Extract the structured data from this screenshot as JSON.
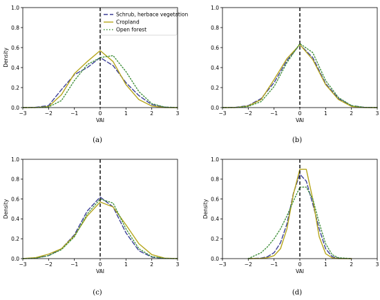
{
  "figure": {
    "legend": [
      {
        "label": "Schrub, herbace vegetation",
        "color": "#3b3f96",
        "style": "dashed"
      },
      {
        "label": "Cropland",
        "color": "#b5a51a",
        "style": "solid"
      },
      {
        "label": "Open forest",
        "color": "#3f8f3a",
        "style": "dotted"
      }
    ]
  },
  "chart_data": [
    {
      "type": "line",
      "panel_label": "(a)",
      "xlabel": "VAI",
      "ylabel": "Density",
      "xlim": [
        -3,
        3
      ],
      "ylim": [
        0,
        1.0
      ],
      "xticks": [
        "-3",
        "-2",
        "-1",
        "0",
        "1",
        "2",
        "3"
      ],
      "yticks": [
        "0.0",
        "0.2",
        "0.4",
        "0.6",
        "0.8",
        "1.0"
      ],
      "vline_x": 0,
      "legend_position": "top-right",
      "x": [
        -3.0,
        -2.5,
        -2.0,
        -1.5,
        -1.0,
        -0.5,
        0.0,
        0.5,
        1.0,
        1.5,
        2.0,
        2.5,
        3.0
      ],
      "series": [
        {
          "name": "Schrub, herbace vegetation",
          "values": [
            0.0,
            0.003,
            0.02,
            0.18,
            0.33,
            0.4,
            0.5,
            0.42,
            0.25,
            0.12,
            0.03,
            0.005,
            0.0
          ]
        },
        {
          "name": "Cropland",
          "values": [
            0.0,
            0.001,
            0.01,
            0.13,
            0.34,
            0.46,
            0.57,
            0.46,
            0.23,
            0.08,
            0.015,
            0.001,
            0.0
          ]
        },
        {
          "name": "Open forest",
          "values": [
            0.0,
            0.001,
            0.006,
            0.07,
            0.27,
            0.43,
            0.5,
            0.52,
            0.36,
            0.16,
            0.04,
            0.005,
            0.0
          ]
        }
      ]
    },
    {
      "type": "line",
      "panel_label": "(b)",
      "xlabel": "VAI",
      "ylabel": "",
      "xlim": [
        -3,
        3
      ],
      "ylim": [
        0,
        1.0
      ],
      "xticks": [
        "-3",
        "-2",
        "-1",
        "0",
        "1",
        "2",
        "3"
      ],
      "yticks": [
        "0.0",
        "0.2",
        "0.4",
        "0.6",
        "0.8",
        "1.0"
      ],
      "vline_x": 0,
      "x": [
        -3.0,
        -2.5,
        -2.0,
        -1.5,
        -1.0,
        -0.5,
        0.0,
        0.5,
        1.0,
        1.5,
        2.0,
        2.5,
        3.0
      ],
      "series": [
        {
          "name": "Schrub, herbace vegetation",
          "values": [
            0.0,
            0.002,
            0.02,
            0.09,
            0.25,
            0.47,
            0.63,
            0.5,
            0.24,
            0.09,
            0.02,
            0.002,
            0.0
          ]
        },
        {
          "name": "Cropland",
          "values": [
            0.0,
            0.001,
            0.015,
            0.08,
            0.28,
            0.49,
            0.63,
            0.48,
            0.23,
            0.08,
            0.012,
            0.001,
            0.0
          ]
        },
        {
          "name": "Open forest",
          "values": [
            0.0,
            0.001,
            0.012,
            0.06,
            0.21,
            0.45,
            0.64,
            0.55,
            0.27,
            0.1,
            0.02,
            0.002,
            0.0
          ]
        }
      ]
    },
    {
      "type": "line",
      "panel_label": "(c)",
      "xlabel": "VAI",
      "ylabel": "Density",
      "xlim": [
        -3,
        3
      ],
      "ylim": [
        0,
        1.0
      ],
      "xticks": [
        "-3",
        "-2",
        "-1",
        "0",
        "1",
        "2",
        "3"
      ],
      "yticks": [
        "0.0",
        "0.2",
        "0.4",
        "0.6",
        "0.8",
        "1.0"
      ],
      "vline_x": 0,
      "x": [
        -3.0,
        -2.5,
        -2.0,
        -1.5,
        -1.0,
        -0.5,
        0.0,
        0.5,
        1.0,
        1.5,
        2.0,
        2.5,
        3.0
      ],
      "series": [
        {
          "name": "Schrub, herbace vegetation",
          "values": [
            0.0,
            0.006,
            0.03,
            0.1,
            0.24,
            0.48,
            0.62,
            0.52,
            0.26,
            0.08,
            0.015,
            0.002,
            0.0
          ]
        },
        {
          "name": "Cropland",
          "values": [
            0.0,
            0.01,
            0.045,
            0.1,
            0.23,
            0.43,
            0.57,
            0.52,
            0.34,
            0.15,
            0.04,
            0.005,
            0.0
          ]
        },
        {
          "name": "Open forest",
          "values": [
            0.0,
            0.004,
            0.03,
            0.09,
            0.22,
            0.45,
            0.6,
            0.56,
            0.3,
            0.1,
            0.02,
            0.002,
            0.0
          ]
        }
      ]
    },
    {
      "type": "line",
      "panel_label": "(d)",
      "xlabel": "VAI",
      "ylabel": "Density",
      "xlim": [
        -3,
        3
      ],
      "ylim": [
        0,
        1.0
      ],
      "xticks": [
        "-3",
        "-2",
        "-1",
        "0",
        "1",
        "2",
        "3"
      ],
      "yticks": [
        "0.0",
        "0.2",
        "0.4",
        "0.6",
        "0.8",
        "1.0"
      ],
      "vline_x": 0,
      "x": [
        -2.0,
        -1.5,
        -1.25,
        -1.0,
        -0.75,
        -0.5,
        -0.25,
        0.0,
        0.25,
        0.5,
        0.75,
        1.0,
        1.25,
        1.5,
        2.0
      ],
      "series": [
        {
          "name": "Schrub, herbace vegetation",
          "values": [
            0.0,
            0.005,
            0.02,
            0.06,
            0.16,
            0.35,
            0.66,
            0.85,
            0.78,
            0.55,
            0.3,
            0.1,
            0.02,
            0.004,
            0.0
          ]
        },
        {
          "name": "Cropland",
          "values": [
            0.0,
            0.002,
            0.01,
            0.03,
            0.1,
            0.3,
            0.65,
            0.9,
            0.9,
            0.6,
            0.22,
            0.05,
            0.008,
            0.001,
            0.0
          ]
        },
        {
          "name": "Open forest",
          "values": [
            0.0,
            0.06,
            0.12,
            0.2,
            0.3,
            0.43,
            0.58,
            0.72,
            0.72,
            0.6,
            0.36,
            0.15,
            0.04,
            0.008,
            0.0
          ]
        }
      ]
    }
  ]
}
